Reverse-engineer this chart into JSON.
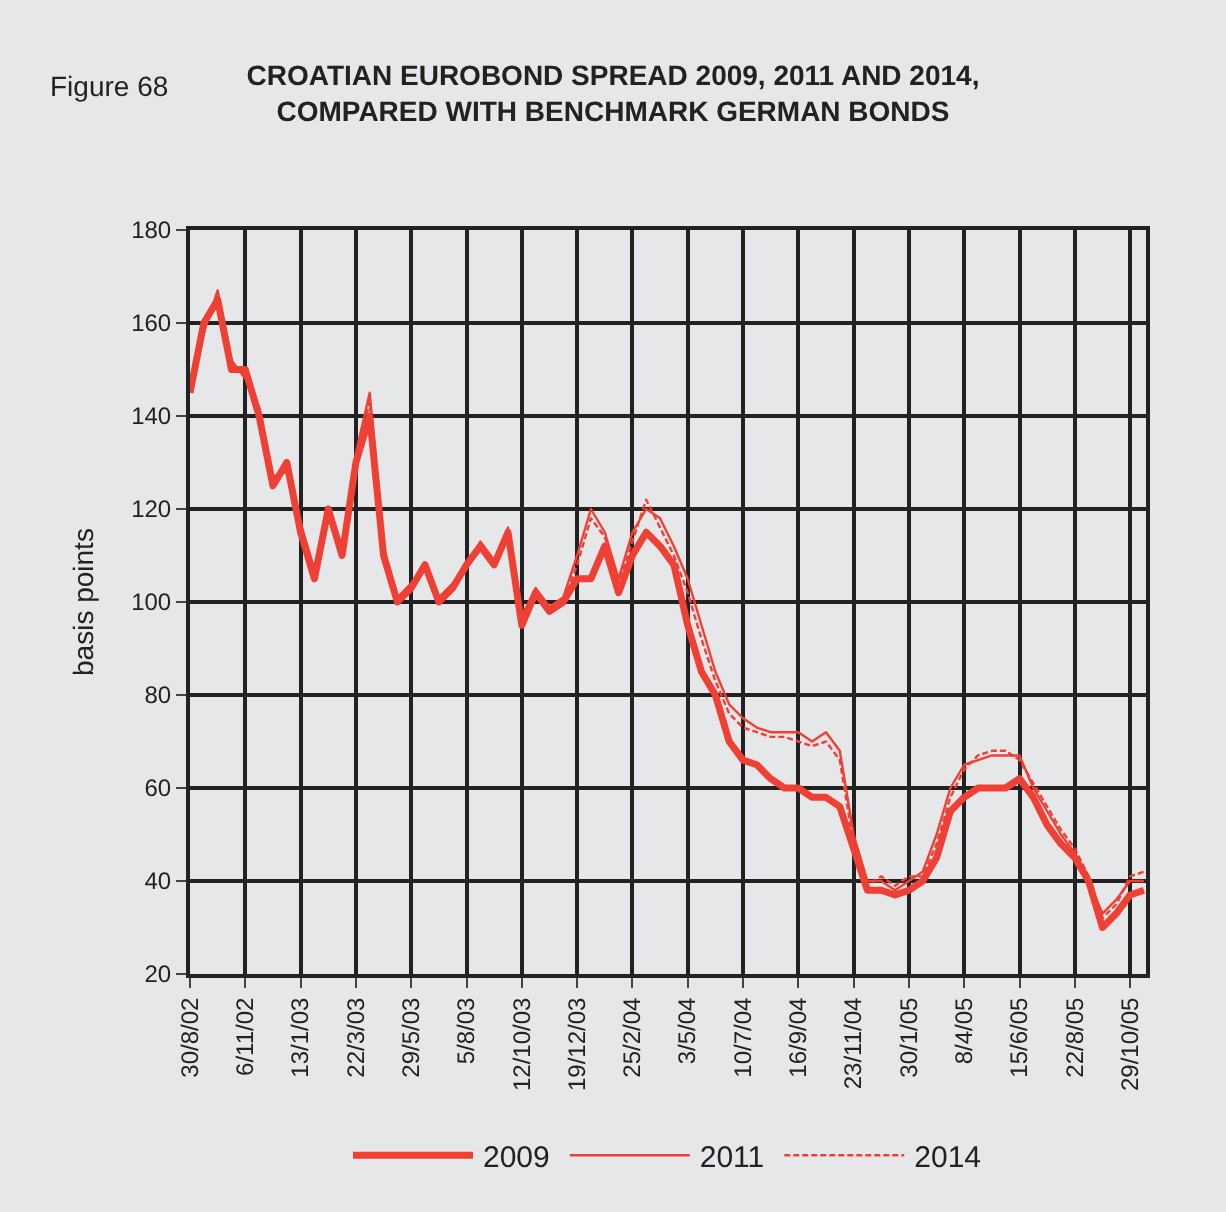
{
  "chart_data": {
    "type": "line",
    "title": "CROATIAN EUROBOND SPREAD 2009, 2011 AND 2014,\nCOMPARED WITH BENCHMARK GERMAN BONDS",
    "ylabel": "basis points",
    "annotations": [
      "Figure 68"
    ],
    "categories": [
      "30/8/02",
      null,
      null,
      null,
      "6/11/02",
      null,
      null,
      null,
      "13/1/03",
      null,
      null,
      null,
      "22/3/03",
      null,
      null,
      null,
      "29/5/03",
      null,
      null,
      null,
      "5/8/03",
      null,
      null,
      null,
      "12/10/03",
      null,
      null,
      null,
      "19/12/03",
      null,
      null,
      null,
      "25/2/04",
      null,
      null,
      null,
      "3/5/04",
      null,
      null,
      null,
      "10/7/04",
      null,
      null,
      null,
      "16/9/04",
      null,
      null,
      null,
      "23/11/04",
      null,
      null,
      null,
      "30/1/05",
      null,
      null,
      null,
      "8/4/05",
      null,
      null,
      null,
      "15/6/05",
      null,
      null,
      null,
      "22/8/05",
      null,
      null,
      null,
      "29/10/05",
      null
    ],
    "series": [
      {
        "name": "2009",
        "color": "#ef4035",
        "line_style": "solid",
        "values": [
          145,
          160,
          165,
          150,
          150,
          140,
          125,
          130,
          115,
          105,
          120,
          110,
          130,
          140,
          110,
          100,
          103,
          108,
          100,
          103,
          108,
          112,
          108,
          115,
          95,
          102,
          98,
          100,
          105,
          105,
          112,
          102,
          110,
          115,
          112,
          108,
          95,
          85,
          80,
          70,
          66,
          65,
          62,
          60,
          60,
          58,
          58,
          56,
          47,
          38,
          38,
          37,
          38,
          40,
          45,
          55,
          58,
          60,
          60,
          60,
          62,
          58,
          52,
          48,
          45,
          40,
          30,
          33,
          37,
          38
        ]
      },
      {
        "name": "2011",
        "color": "#ef4035",
        "line_style": "solid",
        "values": [
          147,
          158,
          167,
          152,
          148,
          142,
          127,
          128,
          117,
          107,
          118,
          112,
          132,
          145,
          112,
          101,
          104,
          107,
          101,
          104,
          107,
          113,
          109,
          116,
          97,
          103,
          99,
          101,
          110,
          120,
          115,
          105,
          115,
          120,
          118,
          112,
          105,
          95,
          85,
          78,
          75,
          73,
          72,
          72,
          72,
          70,
          72,
          68,
          50,
          40,
          40,
          38,
          40,
          42,
          50,
          60,
          65,
          66,
          67,
          67,
          67,
          60,
          55,
          50,
          46,
          40,
          33,
          36,
          40,
          40
        ]
      },
      {
        "name": "2014",
        "color": "#ef4035",
        "line_style": "dashed",
        "values": [
          146,
          159,
          166,
          151,
          149,
          141,
          126,
          129,
          116,
          106,
          119,
          111,
          131,
          143,
          111,
          100,
          104,
          108,
          100,
          103,
          108,
          112,
          108,
          115,
          96,
          102,
          98,
          100,
          108,
          118,
          114,
          104,
          113,
          122,
          116,
          110,
          102,
          92,
          83,
          76,
          73,
          72,
          71,
          71,
          70,
          69,
          70,
          66,
          48,
          39,
          41,
          39,
          41,
          41,
          48,
          58,
          64,
          67,
          68,
          68,
          66,
          61,
          56,
          51,
          47,
          41,
          32,
          35,
          41,
          42
        ]
      }
    ],
    "ylim": [
      20,
      180
    ],
    "yticks": [
      20,
      40,
      60,
      80,
      100,
      120,
      140,
      160,
      180
    ],
    "grid": true,
    "legend": "bottom"
  }
}
